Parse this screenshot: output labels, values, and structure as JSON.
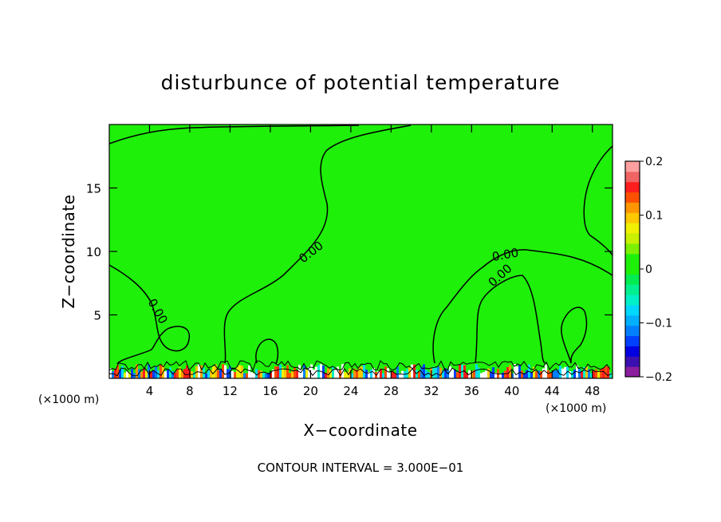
{
  "chart_data": {
    "type": "heatmap",
    "title": "disturbunce of potential temperature",
    "xlabel": "X−coordinate",
    "ylabel": "Z−coordinate",
    "x_unit_left": "(×1000 m)",
    "x_unit_right": "(×1000 m)",
    "xlim": [
      0,
      50
    ],
    "ylim": [
      0,
      20
    ],
    "xticks": [
      4,
      8,
      12,
      16,
      20,
      24,
      28,
      32,
      36,
      40,
      44,
      48
    ],
    "xtick_labels": [
      "4",
      "8",
      "12",
      "16",
      "20",
      "24",
      "28",
      "32",
      "36",
      "40",
      "44",
      "48"
    ],
    "yticks": [
      5,
      10,
      15
    ],
    "ytick_labels": [
      "5",
      "10",
      "15"
    ],
    "background_value": 0.0,
    "background_color": "#1EF00A",
    "contour_labels": [
      "0.00",
      "0.00",
      "0.00",
      "0.00"
    ],
    "contour_interval_text": "CONTOUR INTERVAL = 3.000E−01",
    "colorbar": {
      "min": -0.2,
      "max": 0.2,
      "tick_values": [
        0.2,
        0.1,
        0,
        -0.1,
        -0.2
      ],
      "tick_labels": [
        "0.2",
        "0.1",
        "0",
        "−0.1",
        "−0.2"
      ],
      "colors": [
        "#8B1E9E",
        "#3A10B0",
        "#0000E0",
        "#0040FF",
        "#0080FF",
        "#00B0FF",
        "#00D8FF",
        "#00F0C8",
        "#00F090",
        "#00EC50",
        "#1EF00A",
        "#1EF00A",
        "#7CF000",
        "#C8F000",
        "#F0F000",
        "#FFC800",
        "#FF9600",
        "#FF5000",
        "#FF1E1E",
        "#F06464",
        "#FFA0A0"
      ]
    }
  }
}
